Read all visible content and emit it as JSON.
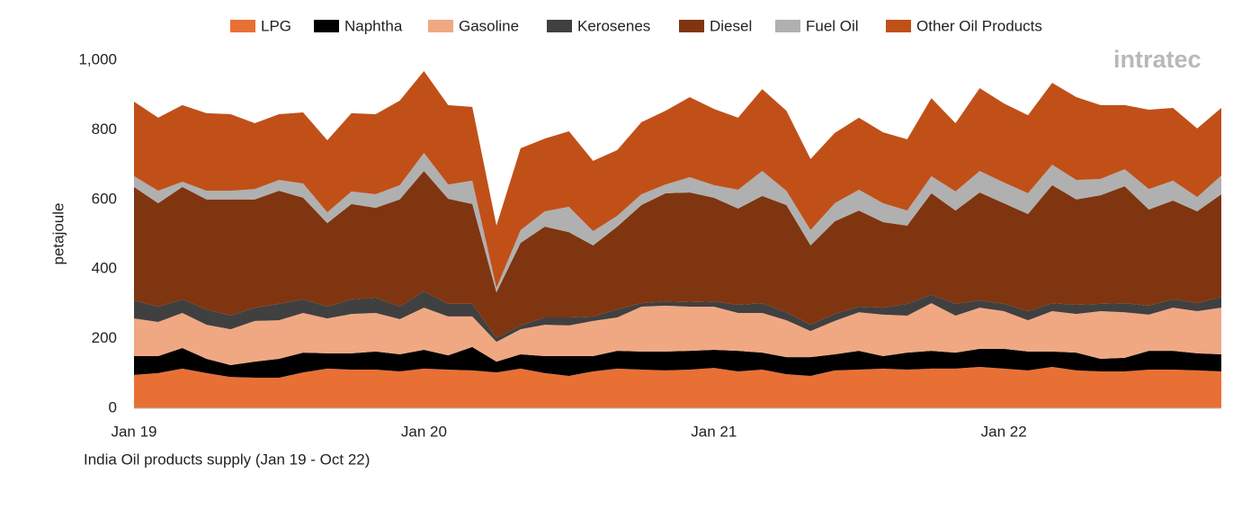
{
  "chart_data": {
    "type": "stacked-area",
    "caption": "India Oil products supply (Jan 19 - Oct 22)",
    "y_label": "petajoule",
    "watermark": "intratec",
    "legend": "top",
    "grid": false,
    "categories": [
      "Jan 19",
      null,
      null,
      null,
      null,
      null,
      null,
      null,
      null,
      null,
      null,
      null,
      "Jan 20",
      null,
      null,
      null,
      null,
      null,
      null,
      null,
      null,
      null,
      null,
      null,
      "Jan 21",
      null,
      null,
      null,
      null,
      null,
      null,
      null,
      null,
      null,
      null,
      null,
      "Jan 22",
      null,
      null,
      null,
      null,
      null,
      null,
      null,
      null,
      null
    ],
    "ylim": [
      0,
      1000
    ],
    "yticks": [
      0,
      200,
      400,
      600,
      800,
      {
        "value": 1000,
        "label": "1,000"
      }
    ],
    "series": [
      {
        "name": "LPG",
        "color": "#e87035",
        "values": [
          96,
          101,
          114,
          101,
          90,
          88,
          88,
          103,
          114,
          111,
          111,
          106,
          114,
          111,
          109,
          103,
          114,
          101,
          93,
          106,
          114,
          111,
          109,
          111,
          116,
          106,
          111,
          98,
          93,
          109,
          111,
          114,
          111,
          114,
          114,
          119,
          114,
          109,
          119,
          109,
          106,
          106,
          111,
          111,
          109,
          106
        ]
      },
      {
        "name": "Naphtha",
        "color": "#000000",
        "values": [
          54,
          49,
          59,
          41,
          34,
          46,
          54,
          57,
          44,
          47,
          52,
          49,
          54,
          41,
          67,
          31,
          41,
          49,
          57,
          44,
          51,
          52,
          54,
          54,
          52,
          59,
          49,
          49,
          54,
          46,
          54,
          36,
          49,
          51,
          46,
          52,
          57,
          54,
          44,
          51,
          36,
          39,
          54,
          54,
          49,
          49
        ]
      },
      {
        "name": "Gasoline",
        "color": "#f0a882",
        "values": [
          108,
          98,
          101,
          98,
          103,
          117,
          111,
          114,
          100,
          113,
          111,
          101,
          121,
          112,
          88,
          57,
          72,
          90,
          88,
          101,
          96,
          129,
          132,
          127,
          124,
          109,
          114,
          106,
          75,
          96,
          111,
          119,
          106,
          137,
          106,
          118,
          108,
          90,
          116,
          111,
          137,
          131,
          104,
          124,
          121,
          134
        ]
      },
      {
        "name": "Kerosenes",
        "color": "#404040",
        "values": [
          52,
          44,
          39,
          44,
          39,
          38,
          47,
          39,
          34,
          42,
          44,
          36,
          47,
          36,
          36,
          11,
          11,
          21,
          23,
          13,
          23,
          10,
          12,
          13,
          15,
          23,
          28,
          23,
          18,
          20,
          16,
          20,
          34,
          24,
          34,
          21,
          21,
          26,
          23,
          26,
          21,
          26,
          26,
          24,
          23,
          31
        ]
      },
      {
        "name": "Diesel",
        "color": "#7f3510",
        "values": [
          326,
          297,
          323,
          316,
          334,
          311,
          325,
          292,
          240,
          274,
          258,
          308,
          346,
          302,
          287,
          131,
          237,
          261,
          245,
          204,
          238,
          282,
          311,
          315,
          298,
          277,
          308,
          308,
          228,
          266,
          276,
          246,
          225,
          292,
          268,
          310,
          289,
          279,
          339,
          303,
          312,
          336,
          276,
          284,
          264,
          295
        ]
      },
      {
        "name": "Fuel Oil",
        "color": "#b0b0b0",
        "values": [
          31,
          36,
          15,
          25,
          25,
          30,
          31,
          41,
          31,
          36,
          39,
          41,
          52,
          41,
          67,
          13,
          37,
          44,
          73,
          41,
          31,
          31,
          25,
          44,
          36,
          54,
          72,
          41,
          44,
          52,
          60,
          54,
          43,
          49,
          55,
          62,
          60,
          60,
          59,
          56,
          47,
          49,
          59,
          57,
          41,
          54
        ]
      },
      {
        "name": "Other Oil Products",
        "color": "#c05018",
        "values": [
          214,
          210,
          220,
          223,
          220,
          189,
          189,
          204,
          207,
          225,
          230,
          243,
          235,
          228,
          212,
          179,
          235,
          209,
          217,
          202,
          189,
          207,
          212,
          230,
          219,
          207,
          235,
          230,
          204,
          202,
          207,
          204,
          205,
          224,
          196,
          238,
          227,
          224,
          235,
          238,
          212,
          184,
          228,
          209,
          197,
          194
        ]
      }
    ]
  }
}
